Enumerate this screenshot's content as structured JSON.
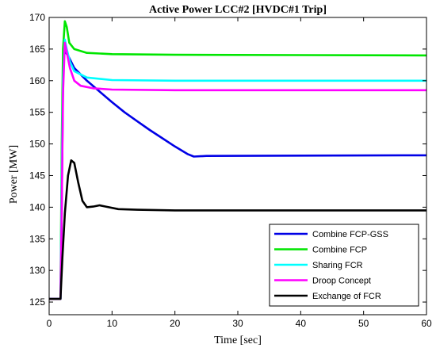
{
  "chart_data": {
    "type": "line",
    "title": "Active Power LCC#2 [HVDC#1 Trip]",
    "xlabel": "Time [sec]",
    "ylabel": "Power [MW]",
    "xlim": [
      0,
      60
    ],
    "ylim": [
      123,
      170
    ],
    "xticks": [
      0,
      10,
      20,
      30,
      40,
      50,
      60
    ],
    "yticks": [
      125,
      130,
      135,
      140,
      145,
      150,
      155,
      160,
      165,
      170
    ],
    "grid": false,
    "legend_position": "bottom-right",
    "series": [
      {
        "name": "Combine FCP-GSS",
        "color": "#0000e6",
        "points": [
          [
            0,
            125.5
          ],
          [
            1.8,
            125.5
          ],
          [
            2.0,
            140
          ],
          [
            2.2,
            160
          ],
          [
            2.4,
            165.5
          ],
          [
            2.6,
            164.5
          ],
          [
            3,
            164
          ],
          [
            4,
            162
          ],
          [
            6,
            160
          ],
          [
            8,
            158.3
          ],
          [
            10,
            156.6
          ],
          [
            12,
            155
          ],
          [
            14,
            153.6
          ],
          [
            16,
            152.2
          ],
          [
            18,
            150.9
          ],
          [
            20,
            149.6
          ],
          [
            22,
            148.4
          ],
          [
            23,
            148.0
          ],
          [
            25,
            148.1
          ],
          [
            60,
            148.2
          ]
        ]
      },
      {
        "name": "Combine FCP",
        "color": "#00e600",
        "points": [
          [
            0,
            125.5
          ],
          [
            1.8,
            125.5
          ],
          [
            2.0,
            150
          ],
          [
            2.2,
            165
          ],
          [
            2.5,
            169.4
          ],
          [
            2.8,
            168.5
          ],
          [
            3.2,
            166
          ],
          [
            4,
            165
          ],
          [
            6,
            164.4
          ],
          [
            10,
            164.2
          ],
          [
            20,
            164.1
          ],
          [
            60,
            164.0
          ]
        ]
      },
      {
        "name": "Sharing FCR",
        "color": "#00ffff",
        "points": [
          [
            0,
            125.5
          ],
          [
            1.8,
            125.5
          ],
          [
            2.0,
            145
          ],
          [
            2.2,
            160
          ],
          [
            2.5,
            166.5
          ],
          [
            2.8,
            165
          ],
          [
            3.3,
            163
          ],
          [
            4,
            161.5
          ],
          [
            6,
            160.5
          ],
          [
            10,
            160.1
          ],
          [
            20,
            160.0
          ],
          [
            60,
            160.0
          ]
        ]
      },
      {
        "name": "Droop Concept",
        "color": "#ff00ff",
        "points": [
          [
            0,
            125.5
          ],
          [
            1.8,
            125.5
          ],
          [
            2.0,
            140
          ],
          [
            2.2,
            158
          ],
          [
            2.5,
            166
          ],
          [
            2.8,
            164.5
          ],
          [
            3.3,
            162
          ],
          [
            4,
            160
          ],
          [
            5,
            159.2
          ],
          [
            7,
            158.8
          ],
          [
            10,
            158.6
          ],
          [
            20,
            158.5
          ],
          [
            60,
            158.5
          ]
        ]
      },
      {
        "name": "Exchange of FCR",
        "color": "#000000",
        "points": [
          [
            0,
            125.5
          ],
          [
            1.8,
            125.5
          ],
          [
            2.1,
            132
          ],
          [
            2.5,
            139
          ],
          [
            3,
            145
          ],
          [
            3.5,
            147.4
          ],
          [
            4,
            147
          ],
          [
            4.6,
            144
          ],
          [
            5.3,
            141
          ],
          [
            6,
            140
          ],
          [
            7,
            140.1
          ],
          [
            8,
            140.3
          ],
          [
            9,
            140.1
          ],
          [
            11,
            139.7
          ],
          [
            14,
            139.6
          ],
          [
            20,
            139.5
          ],
          [
            60,
            139.5
          ]
        ]
      }
    ]
  }
}
